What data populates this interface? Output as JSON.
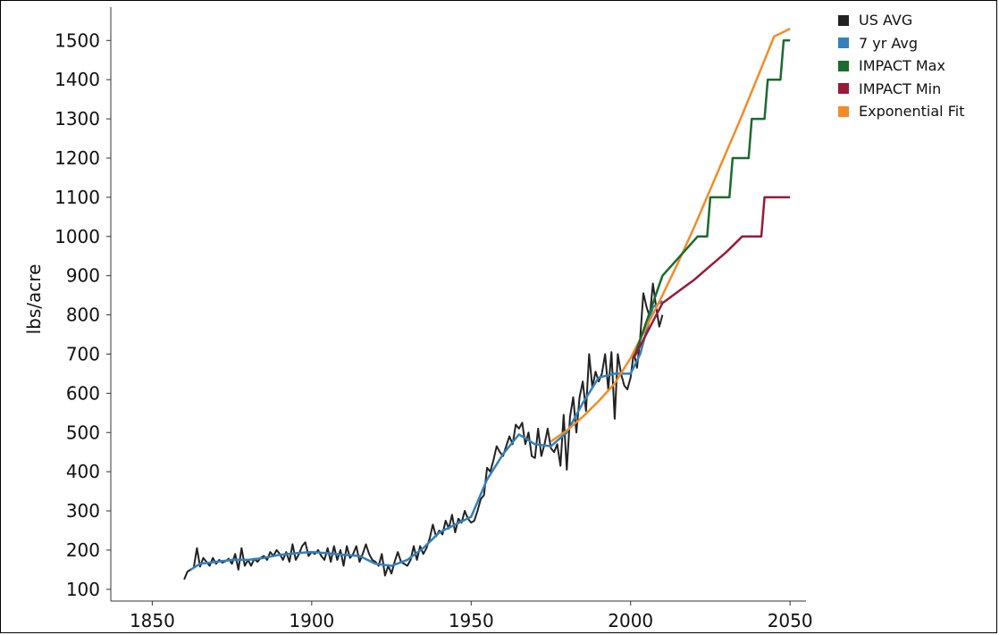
{
  "chart_data": {
    "type": "line",
    "title": "",
    "xlabel": "",
    "ylabel": "lbs/acre",
    "xlim": [
      1837,
      2055
    ],
    "ylim": [
      70,
      1585
    ],
    "xticks": [
      1850,
      1900,
      1950,
      2000,
      2050
    ],
    "yticks": [
      100,
      200,
      300,
      400,
      500,
      600,
      700,
      800,
      900,
      1000,
      1100,
      1200,
      1300,
      1400,
      1500
    ],
    "grid": false,
    "legend": "top-right",
    "series": [
      {
        "name": "US AVG",
        "color": "#222222",
        "points": [
          [
            1860,
            125
          ],
          [
            1861,
            145
          ],
          [
            1862,
            150
          ],
          [
            1863,
            155
          ],
          [
            1864,
            205
          ],
          [
            1865,
            158
          ],
          [
            1866,
            180
          ],
          [
            1867,
            170
          ],
          [
            1868,
            160
          ],
          [
            1869,
            180
          ],
          [
            1870,
            165
          ],
          [
            1871,
            175
          ],
          [
            1872,
            168
          ],
          [
            1873,
            172
          ],
          [
            1874,
            178
          ],
          [
            1875,
            165
          ],
          [
            1876,
            190
          ],
          [
            1877,
            150
          ],
          [
            1878,
            205
          ],
          [
            1879,
            160
          ],
          [
            1880,
            175
          ],
          [
            1881,
            160
          ],
          [
            1882,
            178
          ],
          [
            1883,
            170
          ],
          [
            1884,
            180
          ],
          [
            1885,
            185
          ],
          [
            1886,
            175
          ],
          [
            1887,
            195
          ],
          [
            1888,
            185
          ],
          [
            1889,
            200
          ],
          [
            1890,
            190
          ],
          [
            1891,
            175
          ],
          [
            1892,
            195
          ],
          [
            1893,
            170
          ],
          [
            1894,
            215
          ],
          [
            1895,
            175
          ],
          [
            1896,
            190
          ],
          [
            1897,
            210
          ],
          [
            1898,
            220
          ],
          [
            1899,
            185
          ],
          [
            1900,
            195
          ],
          [
            1901,
            190
          ],
          [
            1902,
            200
          ],
          [
            1903,
            185
          ],
          [
            1904,
            175
          ],
          [
            1905,
            205
          ],
          [
            1906,
            170
          ],
          [
            1907,
            210
          ],
          [
            1908,
            175
          ],
          [
            1909,
            200
          ],
          [
            1910,
            160
          ],
          [
            1911,
            210
          ],
          [
            1912,
            180
          ],
          [
            1913,
            190
          ],
          [
            1914,
            210
          ],
          [
            1915,
            170
          ],
          [
            1916,
            190
          ],
          [
            1917,
            215
          ],
          [
            1918,
            190
          ],
          [
            1919,
            175
          ],
          [
            1920,
            170
          ],
          [
            1921,
            160
          ],
          [
            1922,
            190
          ],
          [
            1923,
            135
          ],
          [
            1924,
            160
          ],
          [
            1925,
            140
          ],
          [
            1926,
            170
          ],
          [
            1927,
            195
          ],
          [
            1928,
            170
          ],
          [
            1929,
            165
          ],
          [
            1930,
            160
          ],
          [
            1931,
            175
          ],
          [
            1932,
            210
          ],
          [
            1933,
            175
          ],
          [
            1934,
            210
          ],
          [
            1935,
            190
          ],
          [
            1936,
            205
          ],
          [
            1937,
            230
          ],
          [
            1938,
            265
          ],
          [
            1939,
            235
          ],
          [
            1940,
            250
          ],
          [
            1941,
            240
          ],
          [
            1942,
            275
          ],
          [
            1943,
            255
          ],
          [
            1944,
            290
          ],
          [
            1945,
            245
          ],
          [
            1946,
            280
          ],
          [
            1947,
            270
          ],
          [
            1948,
            300
          ],
          [
            1949,
            280
          ],
          [
            1950,
            270
          ],
          [
            1951,
            275
          ],
          [
            1952,
            300
          ],
          [
            1953,
            330
          ],
          [
            1954,
            340
          ],
          [
            1955,
            410
          ],
          [
            1956,
            400
          ],
          [
            1957,
            430
          ],
          [
            1958,
            465
          ],
          [
            1959,
            450
          ],
          [
            1960,
            440
          ],
          [
            1961,
            465
          ],
          [
            1962,
            490
          ],
          [
            1963,
            470
          ],
          [
            1964,
            520
          ],
          [
            1965,
            510
          ],
          [
            1966,
            525
          ],
          [
            1967,
            470
          ],
          [
            1968,
            500
          ],
          [
            1969,
            440
          ],
          [
            1970,
            435
          ],
          [
            1971,
            510
          ],
          [
            1972,
            440
          ],
          [
            1973,
            470
          ],
          [
            1974,
            510
          ],
          [
            1975,
            460
          ],
          [
            1976,
            450
          ],
          [
            1977,
            470
          ],
          [
            1978,
            415
          ],
          [
            1979,
            545
          ],
          [
            1980,
            405
          ],
          [
            1981,
            540
          ],
          [
            1982,
            590
          ],
          [
            1983,
            500
          ],
          [
            1984,
            590
          ],
          [
            1985,
            630
          ],
          [
            1986,
            555
          ],
          [
            1987,
            700
          ],
          [
            1988,
            615
          ],
          [
            1989,
            655
          ],
          [
            1990,
            630
          ],
          [
            1991,
            650
          ],
          [
            1992,
            700
          ],
          [
            1993,
            610
          ],
          [
            1994,
            705
          ],
          [
            1995,
            535
          ],
          [
            1996,
            700
          ],
          [
            1997,
            650
          ],
          [
            1998,
            620
          ],
          [
            1999,
            610
          ],
          [
            2000,
            640
          ],
          [
            2001,
            705
          ],
          [
            2002,
            665
          ],
          [
            2003,
            740
          ],
          [
            2004,
            855
          ],
          [
            2005,
            820
          ],
          [
            2006,
            795
          ],
          [
            2007,
            880
          ],
          [
            2008,
            820
          ],
          [
            2009,
            770
          ],
          [
            2010,
            800
          ]
        ]
      },
      {
        "name": "7 yr Avg",
        "color": "#3380bc",
        "points": [
          [
            1862,
            150
          ],
          [
            1865,
            165
          ],
          [
            1870,
            170
          ],
          [
            1875,
            175
          ],
          [
            1880,
            175
          ],
          [
            1885,
            180
          ],
          [
            1890,
            188
          ],
          [
            1895,
            192
          ],
          [
            1900,
            195
          ],
          [
            1905,
            192
          ],
          [
            1910,
            188
          ],
          [
            1915,
            185
          ],
          [
            1920,
            165
          ],
          [
            1925,
            160
          ],
          [
            1930,
            175
          ],
          [
            1935,
            205
          ],
          [
            1940,
            245
          ],
          [
            1945,
            265
          ],
          [
            1950,
            285
          ],
          [
            1955,
            380
          ],
          [
            1960,
            445
          ],
          [
            1965,
            495
          ],
          [
            1970,
            470
          ],
          [
            1975,
            465
          ],
          [
            1980,
            500
          ],
          [
            1985,
            575
          ],
          [
            1990,
            640
          ],
          [
            1995,
            650
          ],
          [
            2000,
            650
          ],
          [
            2003,
            700
          ],
          [
            2007,
            820
          ],
          [
            2010,
            835
          ]
        ]
      },
      {
        "name": "IMPACT Max",
        "color": "#1a6b2e",
        "points": [
          [
            2001,
            690
          ],
          [
            2010,
            900
          ],
          [
            2021,
            1000
          ],
          [
            2024,
            1000
          ],
          [
            2025,
            1100
          ],
          [
            2031,
            1100
          ],
          [
            2032,
            1200
          ],
          [
            2037,
            1200
          ],
          [
            2038,
            1300
          ],
          [
            2042,
            1300
          ],
          [
            2043,
            1400
          ],
          [
            2047,
            1400
          ],
          [
            2048,
            1500
          ],
          [
            2050,
            1500
          ]
        ]
      },
      {
        "name": "IMPACT Min",
        "color": "#991a36",
        "points": [
          [
            2001,
            690
          ],
          [
            2010,
            830
          ],
          [
            2015,
            860
          ],
          [
            2020,
            890
          ],
          [
            2025,
            925
          ],
          [
            2030,
            960
          ],
          [
            2035,
            1000
          ],
          [
            2041,
            1000
          ],
          [
            2042,
            1100
          ],
          [
            2050,
            1100
          ]
        ]
      },
      {
        "name": "Exponential Fit",
        "color": "#f28c28",
        "points": [
          [
            1975,
            477
          ],
          [
            1980,
            505
          ],
          [
            1985,
            540
          ],
          [
            1990,
            580
          ],
          [
            1995,
            625
          ],
          [
            2000,
            690
          ],
          [
            2005,
            770
          ],
          [
            2010,
            850
          ],
          [
            2015,
            935
          ],
          [
            2020,
            1025
          ],
          [
            2025,
            1120
          ],
          [
            2030,
            1215
          ],
          [
            2035,
            1310
          ],
          [
            2040,
            1410
          ],
          [
            2045,
            1510
          ],
          [
            2050,
            1530
          ]
        ]
      }
    ]
  }
}
